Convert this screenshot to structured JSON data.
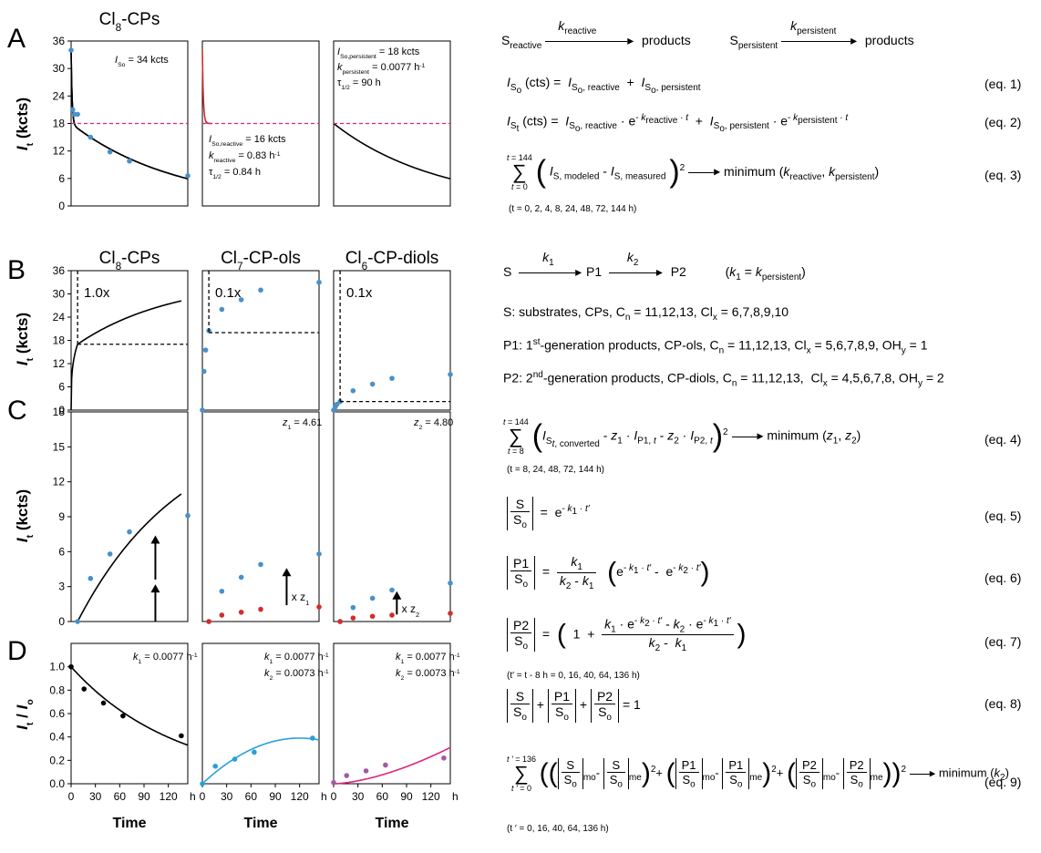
{
  "panel_letters": [
    "A",
    "B",
    "C",
    "D"
  ],
  "colors": {
    "blue": "#4a90c9",
    "red": "#d12d2d",
    "magenta": "#e0237f",
    "purple": "#a25aa2",
    "cyan": "#2a9fd6",
    "black": "#000000"
  },
  "row_titles": {
    "A": [
      "Cl8-CPs"
    ],
    "B": [
      "Cl8-CPs",
      "Cl7-CP-ols",
      "Cl6-CP-diols"
    ]
  },
  "titles_display": {
    "A0": {
      "base": "Cl",
      "sub": "8",
      "rest": "-CPs"
    },
    "B0": {
      "base": "Cl",
      "sub": "8",
      "rest": "-CPs"
    },
    "B1": {
      "base": "Cl",
      "sub": "7",
      "rest": "-CP-ols"
    },
    "B2": {
      "base": "Cl",
      "sub": "6",
      "rest": "-CP-diols"
    }
  },
  "ylabels": {
    "A": "It (kcts)",
    "B": "It (kcts)",
    "C": "It (kcts)",
    "D": "It / Io"
  },
  "xlabel": "Time",
  "xunit": "h",
  "xticks": [
    "0",
    "30",
    "60",
    "90",
    "120"
  ],
  "annotations": {
    "A0": "ISo = 34 kcts",
    "A1": [
      "ISo,reactive = 16 kcts",
      "kreactive = 0.83 h-1",
      "τ1/2 = 0.84 h"
    ],
    "A2": [
      "ISo,persistent = 18 kcts",
      "kpersistent = 0.0077 h-1",
      "τ1/2 = 90 h"
    ],
    "B0": "1.0x",
    "B1": "0.1x",
    "B2": "0.1x",
    "C1": "z1 = 4.61",
    "C2": "z2 = 4.80",
    "C1_arrow": "x z1",
    "C2_arrow": "x z2",
    "D0": "k1 = 0.0077 h-1",
    "D1": [
      "k1 = 0.0077 h-1",
      "k2 = 0.0073 h-1"
    ],
    "D2": [
      "k1 = 0.0077 h-1",
      "k2 = 0.0073 h-1"
    ]
  },
  "chart_data": [
    {
      "panel": "A-left",
      "type": "scatter",
      "title": "Cl8-CPs",
      "ylabel": "It (kcts)",
      "xlabel": "Time",
      "xlim": [
        0,
        144
      ],
      "ylim": [
        0,
        36
      ],
      "yticks": [
        0,
        6,
        12,
        18,
        24,
        30,
        36
      ],
      "series": [
        {
          "values_x": [
            0,
            2,
            4,
            8,
            24,
            48,
            72,
            144
          ],
          "values_y": [
            34,
            21,
            20,
            20,
            15,
            11.8,
            9.8,
            6.6
          ]
        }
      ]
    },
    {
      "panel": "A-middle",
      "type": "line",
      "xlim": [
        0,
        144
      ],
      "ylim": [
        0,
        36
      ]
    },
    {
      "panel": "A-right",
      "type": "line",
      "xlim": [
        0,
        144
      ],
      "ylim": [
        0,
        36
      ]
    },
    {
      "panel": "B-left",
      "type": "line",
      "title": "Cl8-CPs",
      "ylabel": "It (kcts)",
      "xlim": [
        0,
        144
      ],
      "ylim": [
        0,
        36
      ],
      "yticks": [
        0,
        6,
        12,
        18,
        24,
        30,
        36
      ]
    },
    {
      "panel": "B-middle",
      "type": "scatter",
      "title": "Cl7-CP-ols",
      "xlim": [
        0,
        144
      ],
      "ylim": [
        0,
        36
      ],
      "series": [
        {
          "values_x": [
            0,
            2,
            4,
            8,
            24,
            48,
            72,
            144
          ],
          "values_y": [
            0,
            10,
            15.5,
            20.5,
            26,
            28.5,
            31,
            33
          ]
        }
      ]
    },
    {
      "panel": "B-right",
      "type": "scatter",
      "title": "Cl6-CP-diols",
      "xlim": [
        0,
        144
      ],
      "ylim": [
        0,
        36
      ],
      "series": [
        {
          "values_x": [
            0,
            2,
            4,
            8,
            24,
            48,
            72,
            144
          ],
          "values_y": [
            0,
            0.8,
            1.5,
            2.2,
            5,
            6.7,
            8.2,
            9.2
          ]
        }
      ]
    },
    {
      "panel": "C-left",
      "type": "scatter",
      "ylabel": "It (kcts)",
      "xlim": [
        0,
        144
      ],
      "ylim": [
        0,
        18
      ],
      "yticks": [
        0,
        3,
        6,
        9,
        12,
        15,
        18
      ],
      "series": [
        {
          "values_x": [
            8,
            24,
            48,
            72,
            144
          ],
          "values_y": [
            0,
            3.7,
            5.8,
            7.7,
            9.1
          ]
        }
      ]
    },
    {
      "panel": "C-middle",
      "type": "scatter",
      "xlim": [
        0,
        144
      ],
      "ylim": [
        0,
        18
      ],
      "series": [
        {
          "values_x": [
            8,
            24,
            48,
            72,
            144
          ],
          "values_y": [
            0,
            2.6,
            3.8,
            4.9,
            5.8
          ]
        },
        {
          "values_x": [
            8,
            24,
            48,
            72,
            144
          ],
          "values_y": [
            0,
            0.55,
            0.8,
            1.05,
            1.25
          ]
        }
      ]
    },
    {
      "panel": "C-right",
      "type": "scatter",
      "xlim": [
        0,
        144
      ],
      "ylim": [
        0,
        18
      ],
      "series": [
        {
          "values_x": [
            8,
            24,
            48,
            72,
            144
          ],
          "values_y": [
            0,
            1.2,
            2,
            2.7,
            3.3
          ]
        },
        {
          "values_x": [
            8,
            24,
            48,
            72,
            144
          ],
          "values_y": [
            0,
            0.3,
            0.45,
            0.55,
            0.7
          ]
        }
      ]
    },
    {
      "panel": "D-left",
      "type": "scatter",
      "ylabel": "It / Io",
      "xlabel": "Time",
      "xlim": [
        0,
        144
      ],
      "ylim": [
        0,
        1.2
      ],
      "yticks": [
        0.0,
        0.2,
        0.4,
        0.6,
        0.8,
        1.0
      ],
      "series": [
        {
          "values_x": [
            0,
            16,
            40,
            64,
            136
          ],
          "values_y": [
            1.0,
            0.81,
            0.69,
            0.58,
            0.41
          ]
        }
      ]
    },
    {
      "panel": "D-middle",
      "type": "scatter",
      "xlabel": "Time",
      "xlim": [
        0,
        144
      ],
      "ylim": [
        0,
        1.2
      ],
      "series": [
        {
          "values_x": [
            0,
            16,
            40,
            64,
            136
          ],
          "values_y": [
            0,
            0.15,
            0.21,
            0.27,
            0.39
          ]
        }
      ]
    },
    {
      "panel": "D-right",
      "type": "scatter",
      "xlabel": "Time",
      "xlim": [
        0,
        144
      ],
      "ylim": [
        0,
        1.2
      ],
      "series": [
        {
          "values_x": [
            0,
            16,
            40,
            64,
            136
          ],
          "values_y": [
            0.01,
            0.07,
            0.11,
            0.16,
            0.22
          ]
        }
      ]
    }
  ],
  "equations": {
    "scheme_a": {
      "s1": "Sreactive",
      "k1": "kreactive",
      "p": "products",
      "s2": "Spersistent",
      "k2": "kpersistent"
    },
    "eq_labels": [
      "(eq. 1)",
      "(eq. 2)",
      "(eq. 3)",
      "(eq. 4)",
      "(eq. 5)",
      "(eq. 6)",
      "(eq. 7)",
      "(eq. 8)",
      "(eq. 9)"
    ],
    "eq3_note": "(t = 0, 2, 4, 8, 24, 48, 72, 144 h)",
    "eq3_rhs": "minimum (kreactive, kpersistent)",
    "scheme_b": "S → P1 → P2   (k1 = kpersistent)",
    "line_S": "S: substrates, CPs, Cn = 11,12,13, Clx = 6,7,8,9,10",
    "line_P1": "P1: 1st-generation products, CP-ols, Cn = 11,12,13, Clx = 5,6,7,8,9, OHy = 1",
    "line_P2": "P2: 2nd-generation products, CP-diols, Cn = 11,12,13,  Clx = 4,5,6,7,8, OHy = 2",
    "eq4_note": "(t = 8, 24, 48, 72, 144 h)",
    "eq4_rhs": "minimum (z1, z2)",
    "eq7_note": "(t′ = t - 8 h = 0, 16, 40, 64, 136 h)",
    "eq9_note": "(t ′ = 0, 16, 40, 64, 136 h)",
    "eq9_rhs": "minimum (k2)"
  }
}
